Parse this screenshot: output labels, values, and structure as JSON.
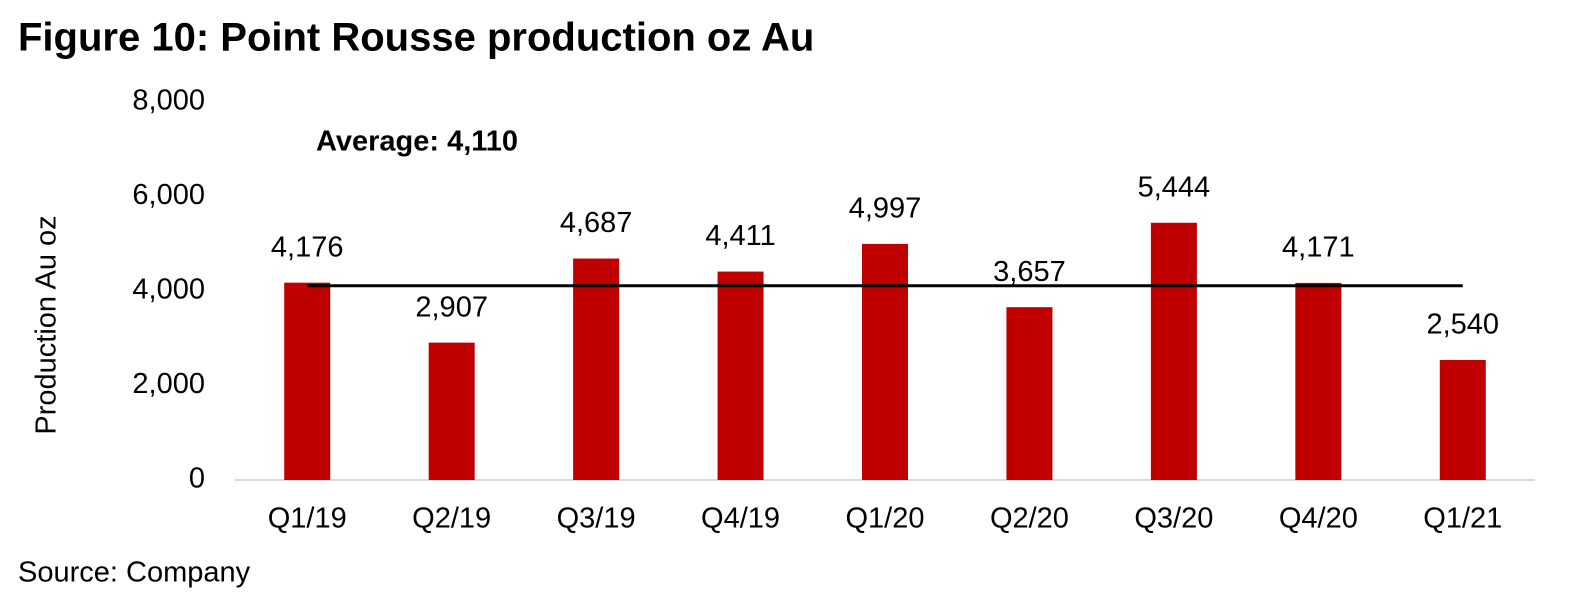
{
  "chart_data": {
    "type": "bar",
    "title": "Figure 10: Point Rousse production oz Au",
    "y_label": "Production Au oz",
    "source": "Source: Company",
    "categories": [
      "Q1/19",
      "Q2/19",
      "Q3/19",
      "Q4/19",
      "Q1/20",
      "Q2/20",
      "Q3/20",
      "Q4/20",
      "Q1/21"
    ],
    "values": [
      4176,
      2907,
      4687,
      4411,
      4997,
      3657,
      5444,
      4171,
      2540
    ],
    "value_labels": [
      "4,176",
      "2,907",
      "4,687",
      "4,411",
      "4,997",
      "3,657",
      "5,444",
      "4,171",
      "2,540"
    ],
    "color": "#c00000",
    "average": {
      "value": 4110,
      "label": "Average: 4,110"
    },
    "ylim": [
      0,
      8000
    ],
    "yticks": [
      0,
      {
        "value": 2000,
        "label": "2,000"
      },
      {
        "value": 4000,
        "label": "4,000"
      },
      {
        "value": 6000,
        "label": "6,000"
      },
      {
        "value": 8000,
        "label": "8,000"
      }
    ],
    "grid": false
  }
}
